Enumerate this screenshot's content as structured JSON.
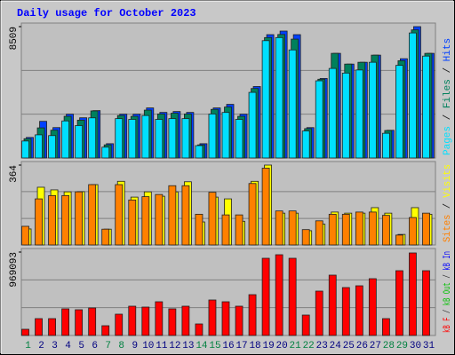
{
  "chart_data": {
    "type": "bar",
    "title": "Daily usage for October 2023",
    "categories": [
      "1",
      "2",
      "3",
      "4",
      "5",
      "6",
      "7",
      "8",
      "9",
      "10",
      "11",
      "12",
      "13",
      "14",
      "15",
      "16",
      "17",
      "18",
      "19",
      "20",
      "21",
      "22",
      "23",
      "24",
      "25",
      "26",
      "27",
      "28",
      "29",
      "30",
      "31"
    ],
    "weekend_indices": [
      0,
      6,
      7,
      13,
      14,
      20,
      21,
      27,
      28
    ],
    "weekday_color": "#000080",
    "weekend_color": "#008040",
    "legend_separator": " / ",
    "panels": [
      {
        "ylim": [
          0,
          8509
        ],
        "yticks": [
          8509
        ],
        "gridlines": [
          2836,
          5673
        ],
        "series": [
          {
            "name": "Pages",
            "color": "#00e0ff",
            "values": [
              1100,
              1500,
              1450,
              2400,
              2100,
              2600,
              700,
              2550,
              2500,
              2750,
              2500,
              2550,
              2550,
              800,
              2850,
              2950,
              2500,
              4250,
              7600,
              7800,
              7000,
              1750,
              5000,
              5800,
              5500,
              5700,
              6200,
              1600,
              6000,
              8100,
              6600
            ]
          },
          {
            "name": "Files",
            "color": "#00805c",
            "values": [
              1250,
              1950,
              1800,
              2700,
              2450,
              3050,
              850,
              2750,
              2700,
              3100,
              2850,
              2900,
              2850,
              850,
              3150,
              3300,
              2700,
              4500,
              7800,
              8000,
              7700,
              1900,
              5100,
              6778,
              6083,
              6199,
              6662,
              1780,
              6300,
              8300,
              6778
            ]
          },
          {
            "name": "Hits",
            "color": "#0040ff",
            "values": [
              1331,
              2374,
              1969,
              2838,
              2605,
              3069,
              926,
              2838,
              2838,
              3242,
              2953,
              3011,
              2953,
              926,
              3242,
              3474,
              2838,
              4631,
              7990,
              8221,
              7990,
              1968,
              5152,
              6778,
              6083,
              6199,
              6662,
              1795,
              6431,
              8509,
              6778
            ]
          }
        ]
      },
      {
        "ylim": [
          0,
          364
        ],
        "yticks": [
          364
        ],
        "gridlines": [
          121,
          243
        ],
        "series": [
          {
            "name": "Sites",
            "color": "#ff8000",
            "values": [
              85,
              210,
              225,
              225,
              242,
              275,
              72,
              275,
              205,
              220,
              230,
              270,
              270,
              140,
              240,
              137,
              137,
              280,
              350,
              155,
              155,
              70,
              110,
              140,
              140,
              150,
              150,
              135,
              45,
              125,
              145
            ]
          },
          {
            "name": "Visits",
            "color": "#ffff00",
            "values": [
              73,
              263,
              251,
              242,
              243,
              275,
              72,
              290,
              218,
              242,
              222,
              242,
              288,
              105,
              218,
              210,
              108,
              290,
              364,
              145,
              145,
              65,
              95,
              150,
              145,
              145,
              170,
              145,
              48,
              170,
              140
            ]
          }
        ]
      },
      {
        "ylim": [
          0,
          969093
        ],
        "yticks": [
          969093
        ],
        "gridlines": [
          323031,
          646062
        ],
        "series": [
          {
            "name": "kB F",
            "color": "#ff0000",
            "values": [
              72164,
              195874,
              195874,
              309278,
              298969,
              319588,
              113402,
              247423,
              340206,
              329897,
              391753,
              309278,
              340206,
              134021,
              412371,
              391753,
              340206,
              474227,
              896907,
              938144,
              896907,
              237113,
              515464,
              701031,
              556701,
              577320,
              659794,
              195876,
              752577,
              958763,
              752577
            ]
          },
          {
            "name": "kB Out",
            "color": "#00c000"
          },
          {
            "name": "kB In",
            "color": "#0000ff"
          }
        ]
      }
    ]
  }
}
